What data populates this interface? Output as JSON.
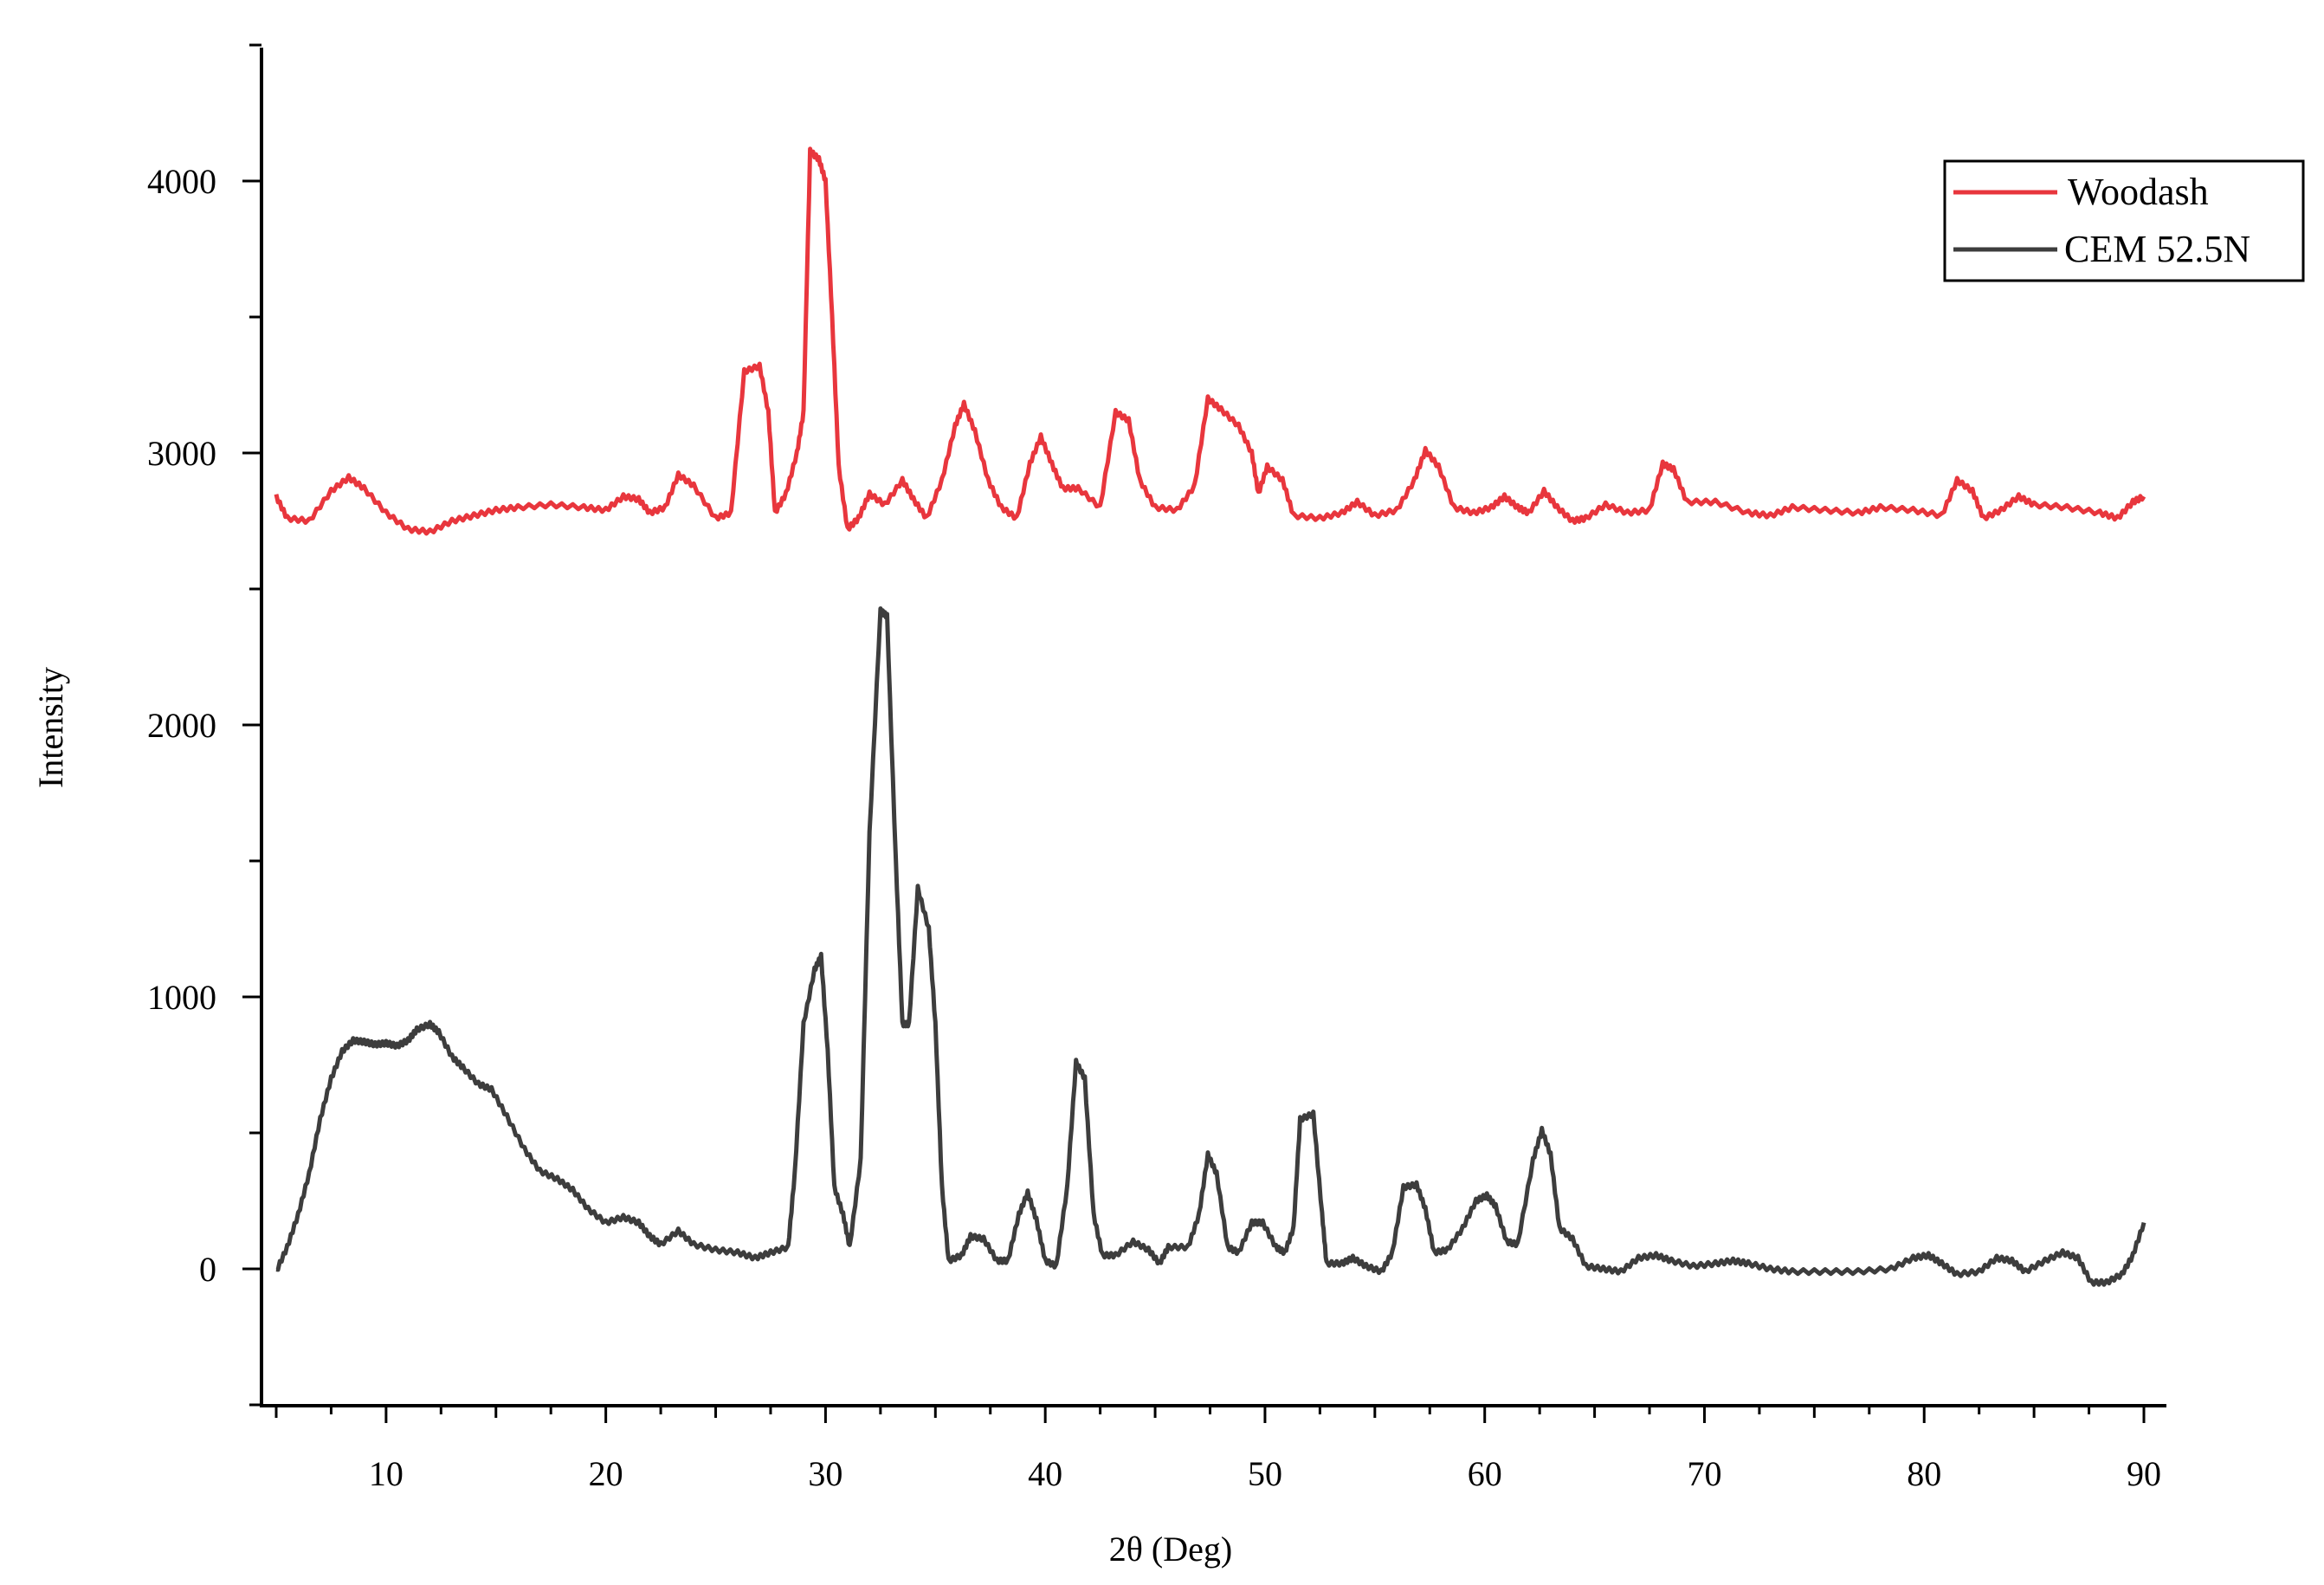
{
  "chart_data": {
    "type": "line",
    "title": "",
    "xlabel": "2θ (Deg)",
    "ylabel": "Intensity",
    "xlim": [
      4,
      91
    ],
    "ylim": [
      -500,
      4500
    ],
    "x_ticks": [
      10,
      20,
      30,
      40,
      50,
      60,
      70,
      80,
      90
    ],
    "y_ticks": [
      0,
      1000,
      2000,
      3000,
      4000
    ],
    "grid": false,
    "legend_position": "top-right",
    "series": [
      {
        "name": "Woodash",
        "color": "#e8363d",
        "points": [
          [
            5,
            2840
          ],
          [
            5.5,
            2760
          ],
          [
            6.5,
            2750
          ],
          [
            7.5,
            2860
          ],
          [
            8.3,
            2910
          ],
          [
            9,
            2870
          ],
          [
            10,
            2780
          ],
          [
            11,
            2720
          ],
          [
            12,
            2710
          ],
          [
            13,
            2750
          ],
          [
            14,
            2770
          ],
          [
            15,
            2790
          ],
          [
            16,
            2800
          ],
          [
            17.5,
            2810
          ],
          [
            19,
            2800
          ],
          [
            20,
            2790
          ],
          [
            20.8,
            2840
          ],
          [
            21.5,
            2830
          ],
          [
            22,
            2780
          ],
          [
            22.7,
            2800
          ],
          [
            23.3,
            2920
          ],
          [
            24,
            2880
          ],
          [
            25,
            2760
          ],
          [
            25.7,
            2780
          ],
          [
            26.3,
            3300
          ],
          [
            27,
            3320
          ],
          [
            27.4,
            3150
          ],
          [
            27.7,
            2780
          ],
          [
            28.2,
            2850
          ],
          [
            28.7,
            3000
          ],
          [
            29,
            3150
          ],
          [
            29.3,
            4110
          ],
          [
            29.7,
            4080
          ],
          [
            30,
            4000
          ],
          [
            30.3,
            3500
          ],
          [
            30.6,
            2950
          ],
          [
            31,
            2720
          ],
          [
            31.5,
            2760
          ],
          [
            32,
            2850
          ],
          [
            32.7,
            2810
          ],
          [
            33.5,
            2900
          ],
          [
            34,
            2830
          ],
          [
            34.6,
            2760
          ],
          [
            35.3,
            2900
          ],
          [
            35.9,
            3100
          ],
          [
            36.3,
            3180
          ],
          [
            36.8,
            3080
          ],
          [
            37.4,
            2900
          ],
          [
            38,
            2800
          ],
          [
            38.7,
            2760
          ],
          [
            39.3,
            2960
          ],
          [
            39.8,
            3060
          ],
          [
            40.3,
            2960
          ],
          [
            40.8,
            2870
          ],
          [
            41.5,
            2870
          ],
          [
            42.5,
            2800
          ],
          [
            43.2,
            3150
          ],
          [
            43.8,
            3120
          ],
          [
            44.3,
            2900
          ],
          [
            45,
            2800
          ],
          [
            46,
            2790
          ],
          [
            46.8,
            2880
          ],
          [
            47.4,
            3200
          ],
          [
            48,
            3160
          ],
          [
            48.8,
            3100
          ],
          [
            49.4,
            3000
          ],
          [
            49.7,
            2850
          ],
          [
            50.1,
            2950
          ],
          [
            50.8,
            2900
          ],
          [
            51.3,
            2770
          ],
          [
            52.5,
            2760
          ],
          [
            53.5,
            2780
          ],
          [
            54.2,
            2820
          ],
          [
            55,
            2770
          ],
          [
            56,
            2790
          ],
          [
            56.8,
            2900
          ],
          [
            57.3,
            3010
          ],
          [
            57.9,
            2950
          ],
          [
            58.6,
            2800
          ],
          [
            59.5,
            2780
          ],
          [
            60.3,
            2800
          ],
          [
            60.9,
            2840
          ],
          [
            61.5,
            2800
          ],
          [
            62,
            2780
          ],
          [
            62.7,
            2860
          ],
          [
            63.3,
            2800
          ],
          [
            64,
            2750
          ],
          [
            64.6,
            2760
          ],
          [
            65.5,
            2810
          ],
          [
            66.5,
            2780
          ],
          [
            67.5,
            2790
          ],
          [
            68.1,
            2960
          ],
          [
            68.6,
            2940
          ],
          [
            69.2,
            2820
          ],
          [
            70.5,
            2820
          ],
          [
            72,
            2780
          ],
          [
            73,
            2770
          ],
          [
            74,
            2800
          ],
          [
            75.5,
            2790
          ],
          [
            77,
            2780
          ],
          [
            78,
            2800
          ],
          [
            79.5,
            2790
          ],
          [
            80.8,
            2770
          ],
          [
            81.5,
            2900
          ],
          [
            82.2,
            2860
          ],
          [
            82.7,
            2760
          ],
          [
            83.5,
            2790
          ],
          [
            84.3,
            2840
          ],
          [
            85,
            2810
          ],
          [
            86.5,
            2800
          ],
          [
            88,
            2780
          ],
          [
            88.8,
            2760
          ],
          [
            89.5,
            2820
          ],
          [
            90,
            2840
          ]
        ]
      },
      {
        "name": "CEM 52.5N",
        "color": "#3d3d3d",
        "points": [
          [
            5,
            -10
          ],
          [
            5.5,
            80
          ],
          [
            6,
            200
          ],
          [
            6.5,
            350
          ],
          [
            7,
            550
          ],
          [
            7.5,
            700
          ],
          [
            8,
            800
          ],
          [
            8.5,
            840
          ],
          [
            9,
            835
          ],
          [
            9.5,
            825
          ],
          [
            10,
            830
          ],
          [
            10.5,
            820
          ],
          [
            11,
            840
          ],
          [
            11.4,
            880
          ],
          [
            12,
            900
          ],
          [
            12.4,
            870
          ],
          [
            13,
            780
          ],
          [
            13.5,
            740
          ],
          [
            14.2,
            680
          ],
          [
            14.8,
            660
          ],
          [
            15.5,
            560
          ],
          [
            16.3,
            440
          ],
          [
            17,
            360
          ],
          [
            17.8,
            330
          ],
          [
            18.5,
            290
          ],
          [
            19.2,
            220
          ],
          [
            20,
            170
          ],
          [
            20.8,
            190
          ],
          [
            21.5,
            170
          ],
          [
            22,
            120
          ],
          [
            22.5,
            90
          ],
          [
            23.3,
            140
          ],
          [
            24,
            90
          ],
          [
            25,
            70
          ],
          [
            26,
            60
          ],
          [
            26.8,
            40
          ],
          [
            27.5,
            60
          ],
          [
            28.3,
            80
          ],
          [
            28.6,
            350
          ],
          [
            29,
            900
          ],
          [
            29.5,
            1100
          ],
          [
            29.8,
            1150
          ],
          [
            30.1,
            800
          ],
          [
            30.4,
            300
          ],
          [
            30.8,
            200
          ],
          [
            31.1,
            80
          ],
          [
            31.6,
            400
          ],
          [
            32,
            1600
          ],
          [
            32.5,
            2420
          ],
          [
            32.8,
            2400
          ],
          [
            33.2,
            1500
          ],
          [
            33.5,
            900
          ],
          [
            33.8,
            900
          ],
          [
            34.2,
            1400
          ],
          [
            34.7,
            1250
          ],
          [
            35,
            900
          ],
          [
            35.3,
            300
          ],
          [
            35.6,
            30
          ],
          [
            36.2,
            50
          ],
          [
            36.6,
            120
          ],
          [
            37.2,
            110
          ],
          [
            37.8,
            30
          ],
          [
            38.3,
            30
          ],
          [
            38.8,
            200
          ],
          [
            39.2,
            280
          ],
          [
            39.6,
            180
          ],
          [
            40,
            30
          ],
          [
            40.5,
            10
          ],
          [
            41,
            300
          ],
          [
            41.4,
            760
          ],
          [
            41.8,
            700
          ],
          [
            42.2,
            200
          ],
          [
            42.6,
            50
          ],
          [
            43.2,
            50
          ],
          [
            44,
            100
          ],
          [
            44.7,
            70
          ],
          [
            45.2,
            20
          ],
          [
            45.6,
            80
          ],
          [
            46.5,
            80
          ],
          [
            47,
            200
          ],
          [
            47.4,
            420
          ],
          [
            47.8,
            350
          ],
          [
            48.3,
            80
          ],
          [
            48.8,
            60
          ],
          [
            49.4,
            170
          ],
          [
            49.9,
            170
          ],
          [
            50.5,
            80
          ],
          [
            50.9,
            60
          ],
          [
            51.3,
            150
          ],
          [
            51.6,
            550
          ],
          [
            52.2,
            570
          ],
          [
            52.6,
            200
          ],
          [
            52.8,
            20
          ],
          [
            53.5,
            20
          ],
          [
            54,
            40
          ],
          [
            54.6,
            10
          ],
          [
            55.3,
            -10
          ],
          [
            55.8,
            60
          ],
          [
            56.3,
            300
          ],
          [
            56.9,
            310
          ],
          [
            57.3,
            220
          ],
          [
            57.7,
            60
          ],
          [
            58.3,
            70
          ],
          [
            59,
            150
          ],
          [
            59.6,
            250
          ],
          [
            60.1,
            270
          ],
          [
            60.5,
            230
          ],
          [
            61,
            100
          ],
          [
            61.5,
            90
          ],
          [
            62.2,
            400
          ],
          [
            62.6,
            510
          ],
          [
            63,
            420
          ],
          [
            63.4,
            150
          ],
          [
            64,
            110
          ],
          [
            64.6,
            10
          ],
          [
            65.4,
            0
          ],
          [
            66.2,
            -10
          ],
          [
            67,
            40
          ],
          [
            67.8,
            50
          ],
          [
            68.5,
            30
          ],
          [
            69.5,
            10
          ],
          [
            70.5,
            20
          ],
          [
            71.3,
            30
          ],
          [
            72,
            20
          ],
          [
            73,
            0
          ],
          [
            74,
            -10
          ],
          [
            75.5,
            -10
          ],
          [
            77,
            -10
          ],
          [
            78.5,
            0
          ],
          [
            79.5,
            40
          ],
          [
            80.2,
            50
          ],
          [
            80.8,
            20
          ],
          [
            81.5,
            -20
          ],
          [
            82.5,
            -10
          ],
          [
            83.3,
            40
          ],
          [
            84,
            30
          ],
          [
            84.6,
            -10
          ],
          [
            85.5,
            30
          ],
          [
            86.3,
            60
          ],
          [
            87,
            40
          ],
          [
            87.6,
            -50
          ],
          [
            88.3,
            -50
          ],
          [
            89,
            -20
          ],
          [
            89.5,
            50
          ],
          [
            90,
            170
          ]
        ]
      }
    ]
  }
}
